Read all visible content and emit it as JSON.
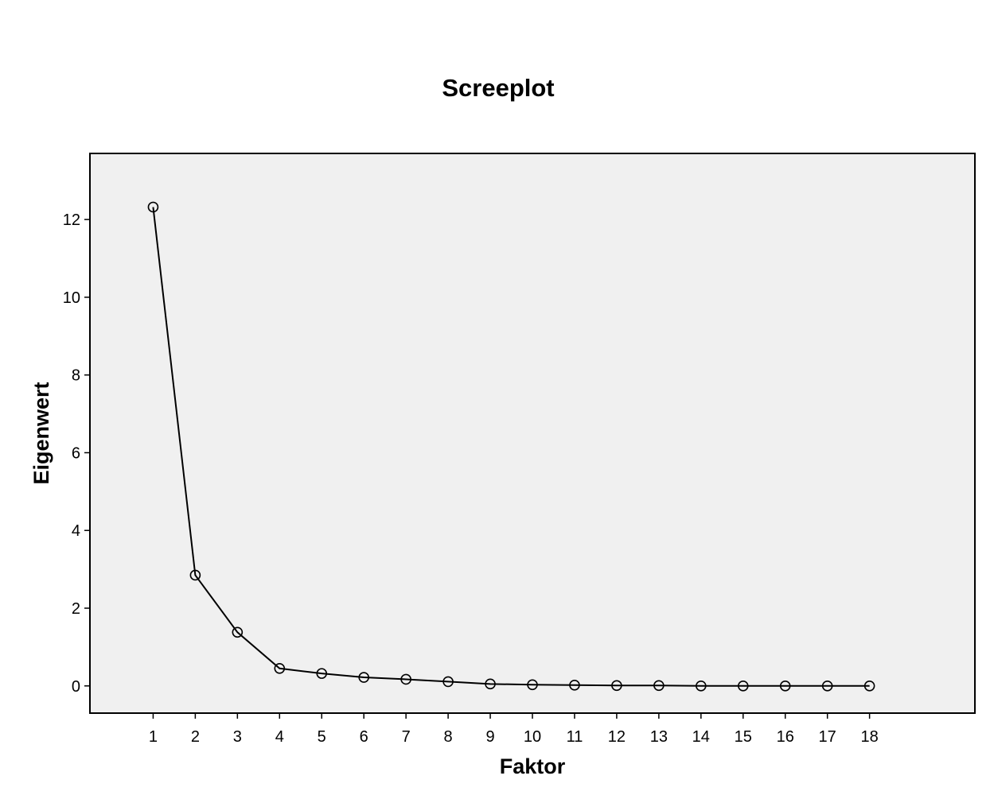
{
  "chart_data": {
    "type": "line",
    "title": "Screeplot",
    "xlabel": "Faktor",
    "ylabel": "Eigenwert",
    "x": [
      1,
      2,
      3,
      4,
      5,
      6,
      7,
      8,
      9,
      10,
      11,
      12,
      13,
      14,
      15,
      16,
      17,
      18
    ],
    "values": [
      12.32,
      2.85,
      1.38,
      0.45,
      0.32,
      0.22,
      0.17,
      0.11,
      0.05,
      0.03,
      0.02,
      0.01,
      0.01,
      0.0,
      0.0,
      0.0,
      0.0,
      0.0
    ],
    "x_ticks": [
      "1",
      "2",
      "3",
      "4",
      "5",
      "6",
      "7",
      "8",
      "9",
      "10",
      "11",
      "12",
      "13",
      "14",
      "15",
      "16",
      "17",
      "18"
    ],
    "y_ticks": [
      "0",
      "2",
      "4",
      "6",
      "8",
      "10",
      "12"
    ],
    "xlim": [
      -0.5,
      20.5
    ],
    "ylim": [
      -0.7,
      13.7
    ],
    "grid": false,
    "marker": "open-circle",
    "colors": {
      "plot_background": "#f0f0f0",
      "line": "#000000",
      "frame": "#000000"
    }
  }
}
